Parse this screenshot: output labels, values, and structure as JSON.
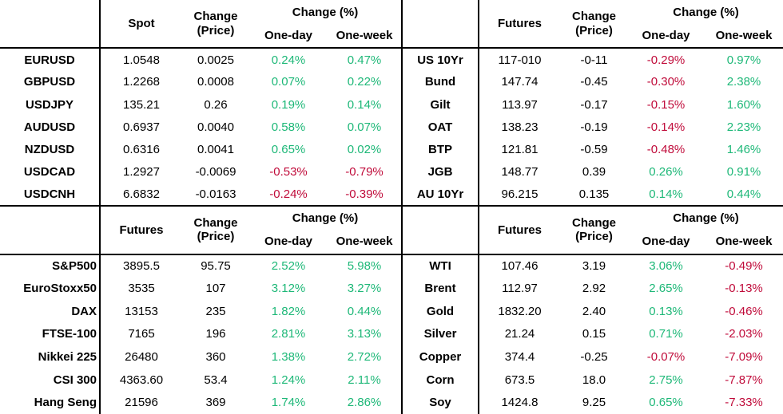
{
  "colors": {
    "positive": "#1eb878",
    "negative": "#c00b3a",
    "text": "#000000",
    "grid": "#000000"
  },
  "chart_data": {
    "type": "table",
    "shared_headers": {
      "change_l1": "Change",
      "change_l2": "(Price)",
      "pct_group": "Change (%)",
      "one_day": "One-day",
      "one_week": "One-week"
    },
    "sections": [
      {
        "name": "fx-spot",
        "price_header": "Spot",
        "rows": [
          {
            "label": "EURUSD",
            "price": "1.0548",
            "change": "0.0025",
            "one_day": "0.24%",
            "one_week": "0.47%"
          },
          {
            "label": "GBPUSD",
            "price": "1.2268",
            "change": "0.0008",
            "one_day": "0.07%",
            "one_week": "0.22%"
          },
          {
            "label": "USDJPY",
            "price": "135.21",
            "change": "0.26",
            "one_day": "0.19%",
            "one_week": "0.14%"
          },
          {
            "label": "AUDUSD",
            "price": "0.6937",
            "change": "0.0040",
            "one_day": "0.58%",
            "one_week": "0.07%"
          },
          {
            "label": "NZDUSD",
            "price": "0.6316",
            "change": "0.0041",
            "one_day": "0.65%",
            "one_week": "0.02%"
          },
          {
            "label": "USDCAD",
            "price": "1.2927",
            "change": "-0.0069",
            "one_day": "-0.53%",
            "one_week": "-0.79%"
          },
          {
            "label": "USDCNH",
            "price": "6.6832",
            "change": "-0.0163",
            "one_day": "-0.24%",
            "one_week": "-0.39%"
          }
        ]
      },
      {
        "name": "bond-futures",
        "price_header": "Futures",
        "rows": [
          {
            "label": "US 10Yr",
            "price": "117-010",
            "change": "-0-11",
            "one_day": "-0.29%",
            "one_week": "0.97%"
          },
          {
            "label": "Bund",
            "price": "147.74",
            "change": "-0.45",
            "one_day": "-0.30%",
            "one_week": "2.38%"
          },
          {
            "label": "Gilt",
            "price": "113.97",
            "change": "-0.17",
            "one_day": "-0.15%",
            "one_week": "1.60%"
          },
          {
            "label": "OAT",
            "price": "138.23",
            "change": "-0.19",
            "one_day": "-0.14%",
            "one_week": "2.23%"
          },
          {
            "label": "BTP",
            "price": "121.81",
            "change": "-0.59",
            "one_day": "-0.48%",
            "one_week": "1.46%"
          },
          {
            "label": "JGB",
            "price": "148.77",
            "change": "0.39",
            "one_day": "0.26%",
            "one_week": "0.91%"
          },
          {
            "label": "AU 10Yr",
            "price": "96.215",
            "change": "0.135",
            "one_day": "0.14%",
            "one_week": "0.44%"
          }
        ]
      },
      {
        "name": "equity-futures",
        "price_header": "Futures",
        "rows": [
          {
            "label": "S&P500",
            "price": "3895.5",
            "change": "95.75",
            "one_day": "2.52%",
            "one_week": "5.98%"
          },
          {
            "label": "EuroStoxx50",
            "price": "3535",
            "change": "107",
            "one_day": "3.12%",
            "one_week": "3.27%"
          },
          {
            "label": "DAX",
            "price": "13153",
            "change": "235",
            "one_day": "1.82%",
            "one_week": "0.44%"
          },
          {
            "label": "FTSE-100",
            "price": "7165",
            "change": "196",
            "one_day": "2.81%",
            "one_week": "3.13%"
          },
          {
            "label": "Nikkei 225",
            "price": "26480",
            "change": "360",
            "one_day": "1.38%",
            "one_week": "2.72%"
          },
          {
            "label": "CSI 300",
            "price": "4363.60",
            "change": "53.4",
            "one_day": "1.24%",
            "one_week": "2.11%"
          },
          {
            "label": "Hang Seng",
            "price": "21596",
            "change": "369",
            "one_day": "1.74%",
            "one_week": "2.86%"
          }
        ]
      },
      {
        "name": "commodity-futures",
        "price_header": "Futures",
        "rows": [
          {
            "label": "WTI",
            "price": "107.46",
            "change": "3.19",
            "one_day": "3.06%",
            "one_week": "-0.49%"
          },
          {
            "label": "Brent",
            "price": "112.97",
            "change": "2.92",
            "one_day": "2.65%",
            "one_week": "-0.13%"
          },
          {
            "label": "Gold",
            "price": "1832.20",
            "change": "2.40",
            "one_day": "0.13%",
            "one_week": "-0.46%"
          },
          {
            "label": "Silver",
            "price": "21.24",
            "change": "0.15",
            "one_day": "0.71%",
            "one_week": "-2.03%"
          },
          {
            "label": "Copper",
            "price": "374.4",
            "change": "-0.25",
            "one_day": "-0.07%",
            "one_week": "-7.09%"
          },
          {
            "label": "Corn",
            "price": "673.5",
            "change": "18.0",
            "one_day": "2.75%",
            "one_week": "-7.87%"
          },
          {
            "label": "Soy",
            "price": "1424.8",
            "change": "9.25",
            "one_day": "0.65%",
            "one_week": "-7.33%"
          }
        ]
      }
    ]
  }
}
